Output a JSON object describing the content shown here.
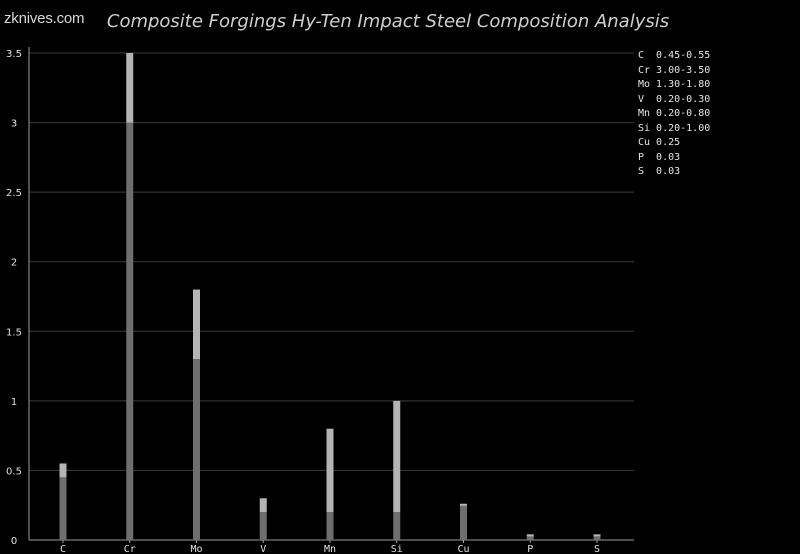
{
  "header": {
    "brand": "zknives.com"
  },
  "chart_data": {
    "type": "bar",
    "title": "Composite Forgings Hy-Ten Impact Steel Composition Analysis",
    "xlabel": "",
    "ylabel": "",
    "ylim": [
      0,
      3.5
    ],
    "yticks": [
      "0",
      "0.5",
      "1",
      "1.5",
      "2",
      "2.5",
      "3",
      "3.5"
    ],
    "grid": true,
    "legend_position": "top-right",
    "categories": [
      "C",
      "Cr",
      "Mo",
      "V",
      "Mn",
      "Si",
      "Cu",
      "P",
      "S"
    ],
    "min": [
      0.45,
      3.0,
      1.3,
      0.2,
      0.2,
      0.2,
      0.25,
      0.03,
      0.03
    ],
    "max": [
      0.55,
      3.5,
      1.8,
      0.3,
      0.8,
      1.0,
      0.25,
      0.03,
      0.03
    ],
    "colors": {
      "min_bar": "#6e6e6e",
      "range_bar": "#b4b4b4",
      "grid": "#3a3a3a",
      "axis": "#9a9a9a",
      "text": "#e0e0e0"
    }
  },
  "legend": {
    "items": [
      {
        "element": "C",
        "range": "0.45-0.55"
      },
      {
        "element": "Cr",
        "range": "3.00-3.50"
      },
      {
        "element": "Mo",
        "range": "1.30-1.80"
      },
      {
        "element": "V",
        "range": "0.20-0.30"
      },
      {
        "element": "Mn",
        "range": "0.20-0.80"
      },
      {
        "element": "Si",
        "range": "0.20-1.00"
      },
      {
        "element": "Cu",
        "range": "0.25"
      },
      {
        "element": "P",
        "range": "0.03"
      },
      {
        "element": "S",
        "range": "0.03"
      }
    ]
  }
}
